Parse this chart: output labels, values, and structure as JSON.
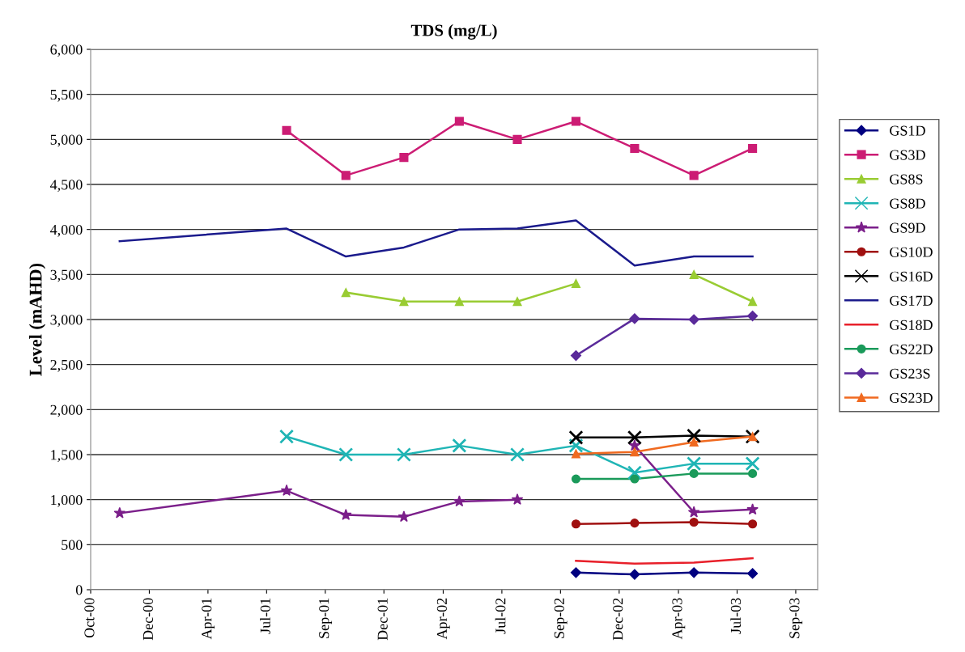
{
  "chart_data": {
    "type": "line",
    "title": "TDS (mg/L)",
    "ylabel": "Level (mAHD)",
    "x": [
      "2000-11-15",
      "2001-08-01",
      "2001-11-01",
      "2002-01-30",
      "2002-04-26",
      "2002-07-25",
      "2002-10-24",
      "2003-01-23",
      "2003-04-25",
      "2003-07-25"
    ],
    "xlim": [
      "2000-10-01",
      "2003-11-03"
    ],
    "xticks": [
      {
        "value": "2000-10-01",
        "label": "Oct-00"
      },
      {
        "value": "2000-12-31",
        "label": "Dec-00"
      },
      {
        "value": "2001-04-01",
        "label": "Apr-01"
      },
      {
        "value": "2001-07-01",
        "label": "Jul-01"
      },
      {
        "value": "2001-09-30",
        "label": "Sep-01"
      },
      {
        "value": "2001-12-30",
        "label": "Dec-01"
      },
      {
        "value": "2002-04-01",
        "label": "Apr-02"
      },
      {
        "value": "2002-07-01",
        "label": "Jul-02"
      },
      {
        "value": "2002-09-30",
        "label": "Sep-02"
      },
      {
        "value": "2002-12-30",
        "label": "Dec-02"
      },
      {
        "value": "2003-04-01",
        "label": "Apr-03"
      },
      {
        "value": "2003-07-01",
        "label": "Jul-03"
      },
      {
        "value": "2003-09-30",
        "label": "Sep-03"
      }
    ],
    "ylim": [
      0,
      6000
    ],
    "yticks": [
      {
        "value": 0,
        "label": "0"
      },
      {
        "value": 500,
        "label": "500"
      },
      {
        "value": 1000,
        "label": "1,000"
      },
      {
        "value": 1500,
        "label": "1,500"
      },
      {
        "value": 2000,
        "label": "2,000"
      },
      {
        "value": 2500,
        "label": "2,500"
      },
      {
        "value": 3000,
        "label": "3,000"
      },
      {
        "value": 3500,
        "label": "3,500"
      },
      {
        "value": 4000,
        "label": "4,000"
      },
      {
        "value": 4500,
        "label": "4,500"
      },
      {
        "value": 5000,
        "label": "5,000"
      },
      {
        "value": 5500,
        "label": "5,500"
      },
      {
        "value": 6000,
        "label": "6,000"
      }
    ],
    "grid": "y",
    "legend": "right",
    "series": [
      {
        "name": "GS1D",
        "color": "#000080",
        "marker": "diamond",
        "values": [
          null,
          null,
          null,
          null,
          null,
          null,
          190,
          170,
          190,
          180
        ]
      },
      {
        "name": "GS3D",
        "color": "#cc1c74",
        "marker": "square",
        "values": [
          null,
          5100,
          4600,
          4800,
          5200,
          5000,
          5200,
          4900,
          4600,
          4900
        ]
      },
      {
        "name": "GS8S",
        "color": "#99cc33",
        "marker": "triangle",
        "values": [
          null,
          null,
          3300,
          3200,
          3200,
          3200,
          3400,
          null,
          3500,
          3200
        ]
      },
      {
        "name": "GS8D",
        "color": "#1fb5b5",
        "marker": "cross",
        "values": [
          null,
          1700,
          1500,
          1500,
          1600,
          1500,
          1600,
          1300,
          1400,
          1400
        ]
      },
      {
        "name": "GS9D",
        "color": "#7b1f8a",
        "marker": "star",
        "values": [
          850,
          1100,
          830,
          810,
          980,
          1000,
          null,
          1600,
          860,
          890
        ]
      },
      {
        "name": "GS10D",
        "color": "#a01010",
        "marker": "circle",
        "values": [
          null,
          null,
          null,
          null,
          null,
          null,
          730,
          740,
          750,
          730
        ]
      },
      {
        "name": "GS16D",
        "color": "#000000",
        "marker": "cross",
        "values": [
          null,
          null,
          null,
          null,
          null,
          null,
          1690,
          1690,
          1710,
          1700
        ]
      },
      {
        "name": "GS17D",
        "color": "#1a1a8c",
        "marker": "none",
        "values": [
          3870,
          4010,
          3700,
          3800,
          4000,
          4010,
          4100,
          3600,
          3700,
          3700
        ]
      },
      {
        "name": "GS18D",
        "color": "#e8202a",
        "marker": "none",
        "values": [
          null,
          null,
          null,
          null,
          null,
          null,
          320,
          290,
          300,
          350
        ]
      },
      {
        "name": "GS22D",
        "color": "#1a9a5a",
        "marker": "circle",
        "values": [
          null,
          null,
          null,
          null,
          null,
          null,
          1230,
          1230,
          1290,
          1290
        ]
      },
      {
        "name": "GS23S",
        "color": "#5a2a9a",
        "marker": "diamond",
        "values": [
          null,
          null,
          null,
          null,
          null,
          null,
          2600,
          3010,
          3000,
          3040
        ]
      },
      {
        "name": "GS23D",
        "color": "#f06a20",
        "marker": "triangle",
        "values": [
          null,
          null,
          null,
          null,
          null,
          null,
          1510,
          1530,
          1640,
          1700
        ]
      }
    ]
  }
}
